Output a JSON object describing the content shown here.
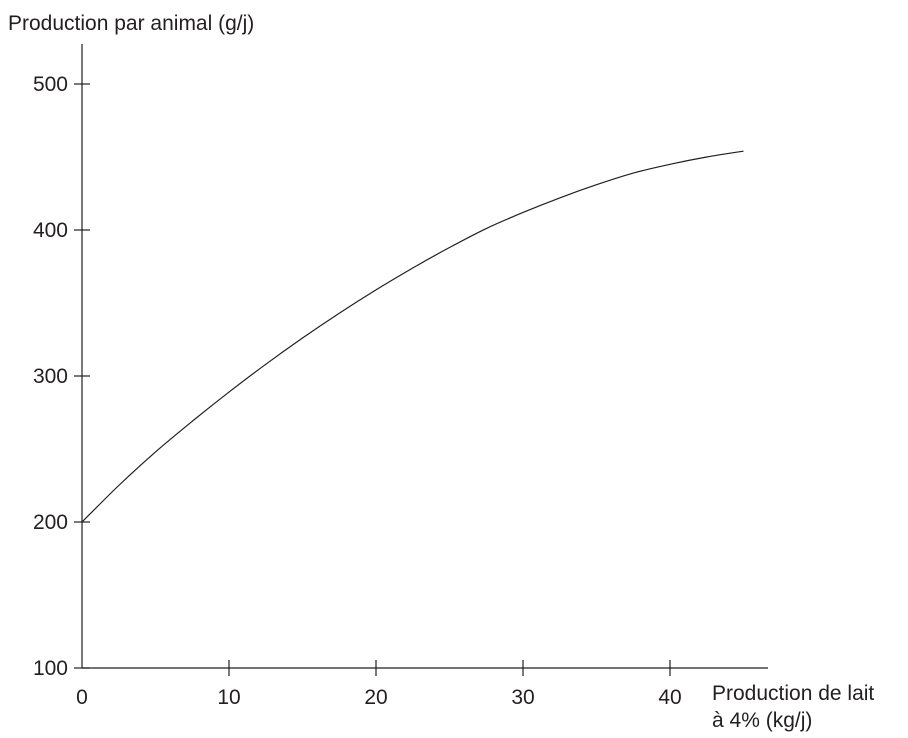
{
  "chart_data": {
    "type": "line",
    "title": "",
    "ylabel": "Production par animal (g/j)",
    "xlabel_lines": [
      "Production de lait",
      "à 4% (kg/j)"
    ],
    "xlim": [
      0,
      47
    ],
    "ylim": [
      100,
      540
    ],
    "x_ticks": [
      0,
      10,
      20,
      30,
      40
    ],
    "x_tick_labels": [
      "0",
      "10",
      "20",
      "30",
      "40"
    ],
    "y_ticks": [
      100,
      200,
      300,
      400,
      500
    ],
    "y_tick_labels": [
      "100",
      "200",
      "300",
      "400",
      "500"
    ],
    "grid": false,
    "series": [
      {
        "color": "#231f20",
        "x": [
          0,
          2.5,
          5,
          7.5,
          10,
          12.5,
          15,
          17.5,
          20,
          22.5,
          25,
          27.5,
          30,
          32.5,
          35,
          37.5,
          40,
          42.5,
          45
        ],
        "y": [
          200,
          225,
          248,
          269,
          289,
          308,
          326,
          343,
          359,
          374,
          388,
          401,
          412,
          422,
          431,
          439,
          445,
          450,
          454
        ]
      }
    ]
  }
}
